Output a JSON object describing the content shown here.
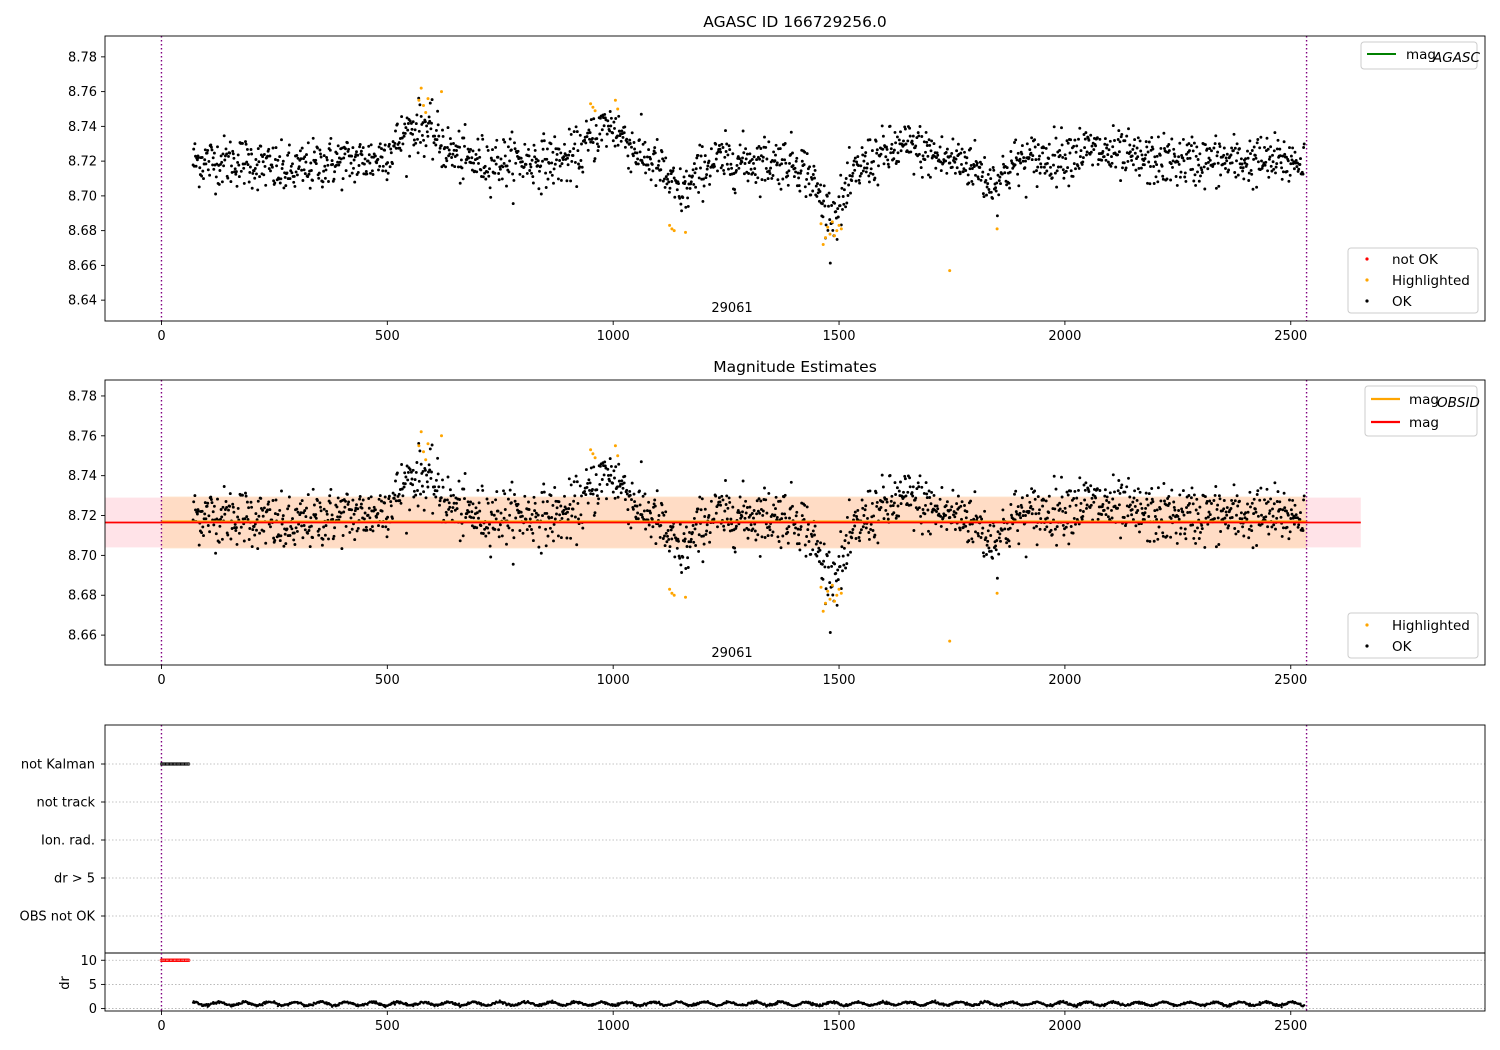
{
  "figure": {
    "top_title": "AGASC ID 166729256.0",
    "middle_title": "Magnitude Estimates",
    "obsid_label": "29061"
  },
  "colors": {
    "ok": "#000000",
    "highlighted": "#ffa500",
    "not_ok": "#ff0000",
    "agasc_line": "#008000",
    "obsid_line": "#ffa500",
    "mag_line": "#ff0000",
    "obs_boundary": "#800080",
    "band_fill": "#ffc0cb",
    "band_obsid_fill": "#ffdab9"
  },
  "chart_data": [
    {
      "id": "agasc_panel",
      "type": "scatter",
      "title": "AGASC ID 166729256.0",
      "xlim": [
        -125,
        2930
      ],
      "ylim": [
        8.628,
        8.792
      ],
      "xticks": [
        0,
        500,
        1000,
        1500,
        2000,
        2500
      ],
      "xtick_labels": [
        "0",
        "500",
        "1000",
        "1500",
        "2000",
        "2500"
      ],
      "yticks": [
        8.64,
        8.66,
        8.68,
        8.7,
        8.72,
        8.74,
        8.76,
        8.78
      ],
      "ytick_labels": [
        "8.64",
        "8.66",
        "8.68",
        "8.70",
        "8.72",
        "8.74",
        "8.76",
        "8.78"
      ],
      "obs_boundaries": [
        0,
        2535
      ],
      "legend_lines": [
        {
          "name": "mag",
          "subscript": "AGASC",
          "color": "#008000"
        }
      ],
      "legend_points": [
        {
          "name": "not OK",
          "color": "#ff0000"
        },
        {
          "name": "Highlighted",
          "color": "#ffa500"
        },
        {
          "name": "OK",
          "color": "#000000"
        }
      ],
      "series": [
        {
          "name": "OK",
          "sampled": true,
          "x_range": [
            70,
            2530
          ],
          "baseline": 8.716
        },
        {
          "name": "Highlighted",
          "x": [
            570,
            575,
            580,
            585,
            590,
            620,
            950,
            955,
            960,
            1005,
            1010,
            1125,
            1130,
            1135,
            1160,
            1460,
            1465,
            1470,
            1475,
            1480,
            1485,
            1490,
            1495,
            1500,
            1505,
            1745,
            1850
          ],
          "y": [
            8.755,
            8.762,
            8.752,
            8.748,
            8.756,
            8.76,
            8.753,
            8.751,
            8.749,
            8.755,
            8.75,
            8.683,
            8.681,
            8.68,
            8.679,
            8.684,
            8.672,
            8.676,
            8.682,
            8.678,
            8.685,
            8.677,
            8.68,
            8.683,
            8.681,
            8.657,
            8.681
          ]
        }
      ]
    },
    {
      "id": "estimates_panel",
      "type": "scatter",
      "title": "Magnitude Estimates",
      "xlim": [
        -125,
        2930
      ],
      "ylim": [
        8.645,
        8.788
      ],
      "xticks": [
        0,
        500,
        1000,
        1500,
        2000,
        2500
      ],
      "xtick_labels": [
        "0",
        "500",
        "1000",
        "1500",
        "2000",
        "2500"
      ],
      "yticks": [
        8.66,
        8.68,
        8.7,
        8.72,
        8.74,
        8.76,
        8.78
      ],
      "ytick_labels": [
        "8.66",
        "8.68",
        "8.70",
        "8.72",
        "8.74",
        "8.76",
        "8.78"
      ],
      "obs_boundaries": [
        0,
        2535
      ],
      "mag": 8.7165,
      "mag_band": [
        8.704,
        8.729
      ],
      "mag_obsid": 8.717,
      "mag_obsid_band": [
        8.7035,
        8.7295
      ],
      "legend_lines": [
        {
          "name": "mag",
          "subscript": "OBSID",
          "color": "#ffa500"
        },
        {
          "name": "mag",
          "subscript": "",
          "color": "#ff0000"
        }
      ],
      "legend_points": [
        {
          "name": "Highlighted",
          "color": "#ffa500"
        },
        {
          "name": "OK",
          "color": "#000000"
        }
      ]
    },
    {
      "id": "flags_panel",
      "type": "scatter",
      "xlim": [
        -125,
        2930
      ],
      "categories": [
        "not Kalman",
        "not track",
        "Ion. rad.",
        "dr > 5",
        "OBS not OK"
      ],
      "flag_x_range": [
        0,
        60
      ],
      "flag_category": "not Kalman",
      "obs_boundaries": [
        0,
        2535
      ]
    },
    {
      "id": "dr_panel",
      "type": "scatter",
      "xlim": [
        -125,
        2930
      ],
      "ylim": [
        -0.5,
        11.5
      ],
      "ylabel": "dr",
      "yticks": [
        0,
        5,
        10
      ],
      "ytick_labels": [
        "0",
        "5",
        "10"
      ],
      "xticks": [
        0,
        500,
        1000,
        1500,
        2000,
        2500
      ],
      "xtick_labels": [
        "0",
        "500",
        "1000",
        "1500",
        "2000",
        "2500"
      ],
      "obs_boundaries": [
        0,
        2535
      ],
      "clipped_x_range": [
        0,
        60
      ],
      "clipped_value": 10,
      "dr_typical": 1.0
    }
  ]
}
